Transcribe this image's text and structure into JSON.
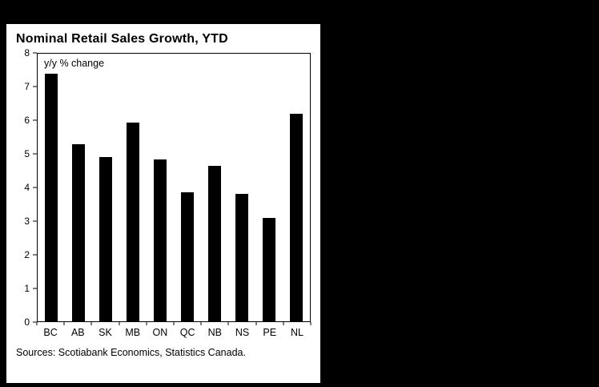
{
  "panel": {
    "title": "Nominal Retail Sales Growth, YTD",
    "annotation": "y/y % change",
    "source": "Sources: Scotiabank Economics, Statistics Canada."
  },
  "chart_data": {
    "type": "bar",
    "title": "Nominal Retail Sales Growth, YTD",
    "annotation": "y/y % change",
    "categories": [
      "BC",
      "AB",
      "SK",
      "MB",
      "ON",
      "QC",
      "NB",
      "NS",
      "PE",
      "NL"
    ],
    "values": [
      7.4,
      5.3,
      4.9,
      5.95,
      4.85,
      3.85,
      4.65,
      3.8,
      3.1,
      6.2
    ],
    "xlabel": "",
    "ylabel": "y/y % change",
    "ylim": [
      0,
      8
    ],
    "yticks": [
      0,
      1,
      2,
      3,
      4,
      5,
      6,
      7,
      8
    ],
    "grid": false,
    "legend": "none",
    "bar_color": "#000000",
    "background_color": "#ffffff",
    "page_background_color": "#000000",
    "source": "Sources: Scotiabank Economics, Statistics Canada."
  }
}
